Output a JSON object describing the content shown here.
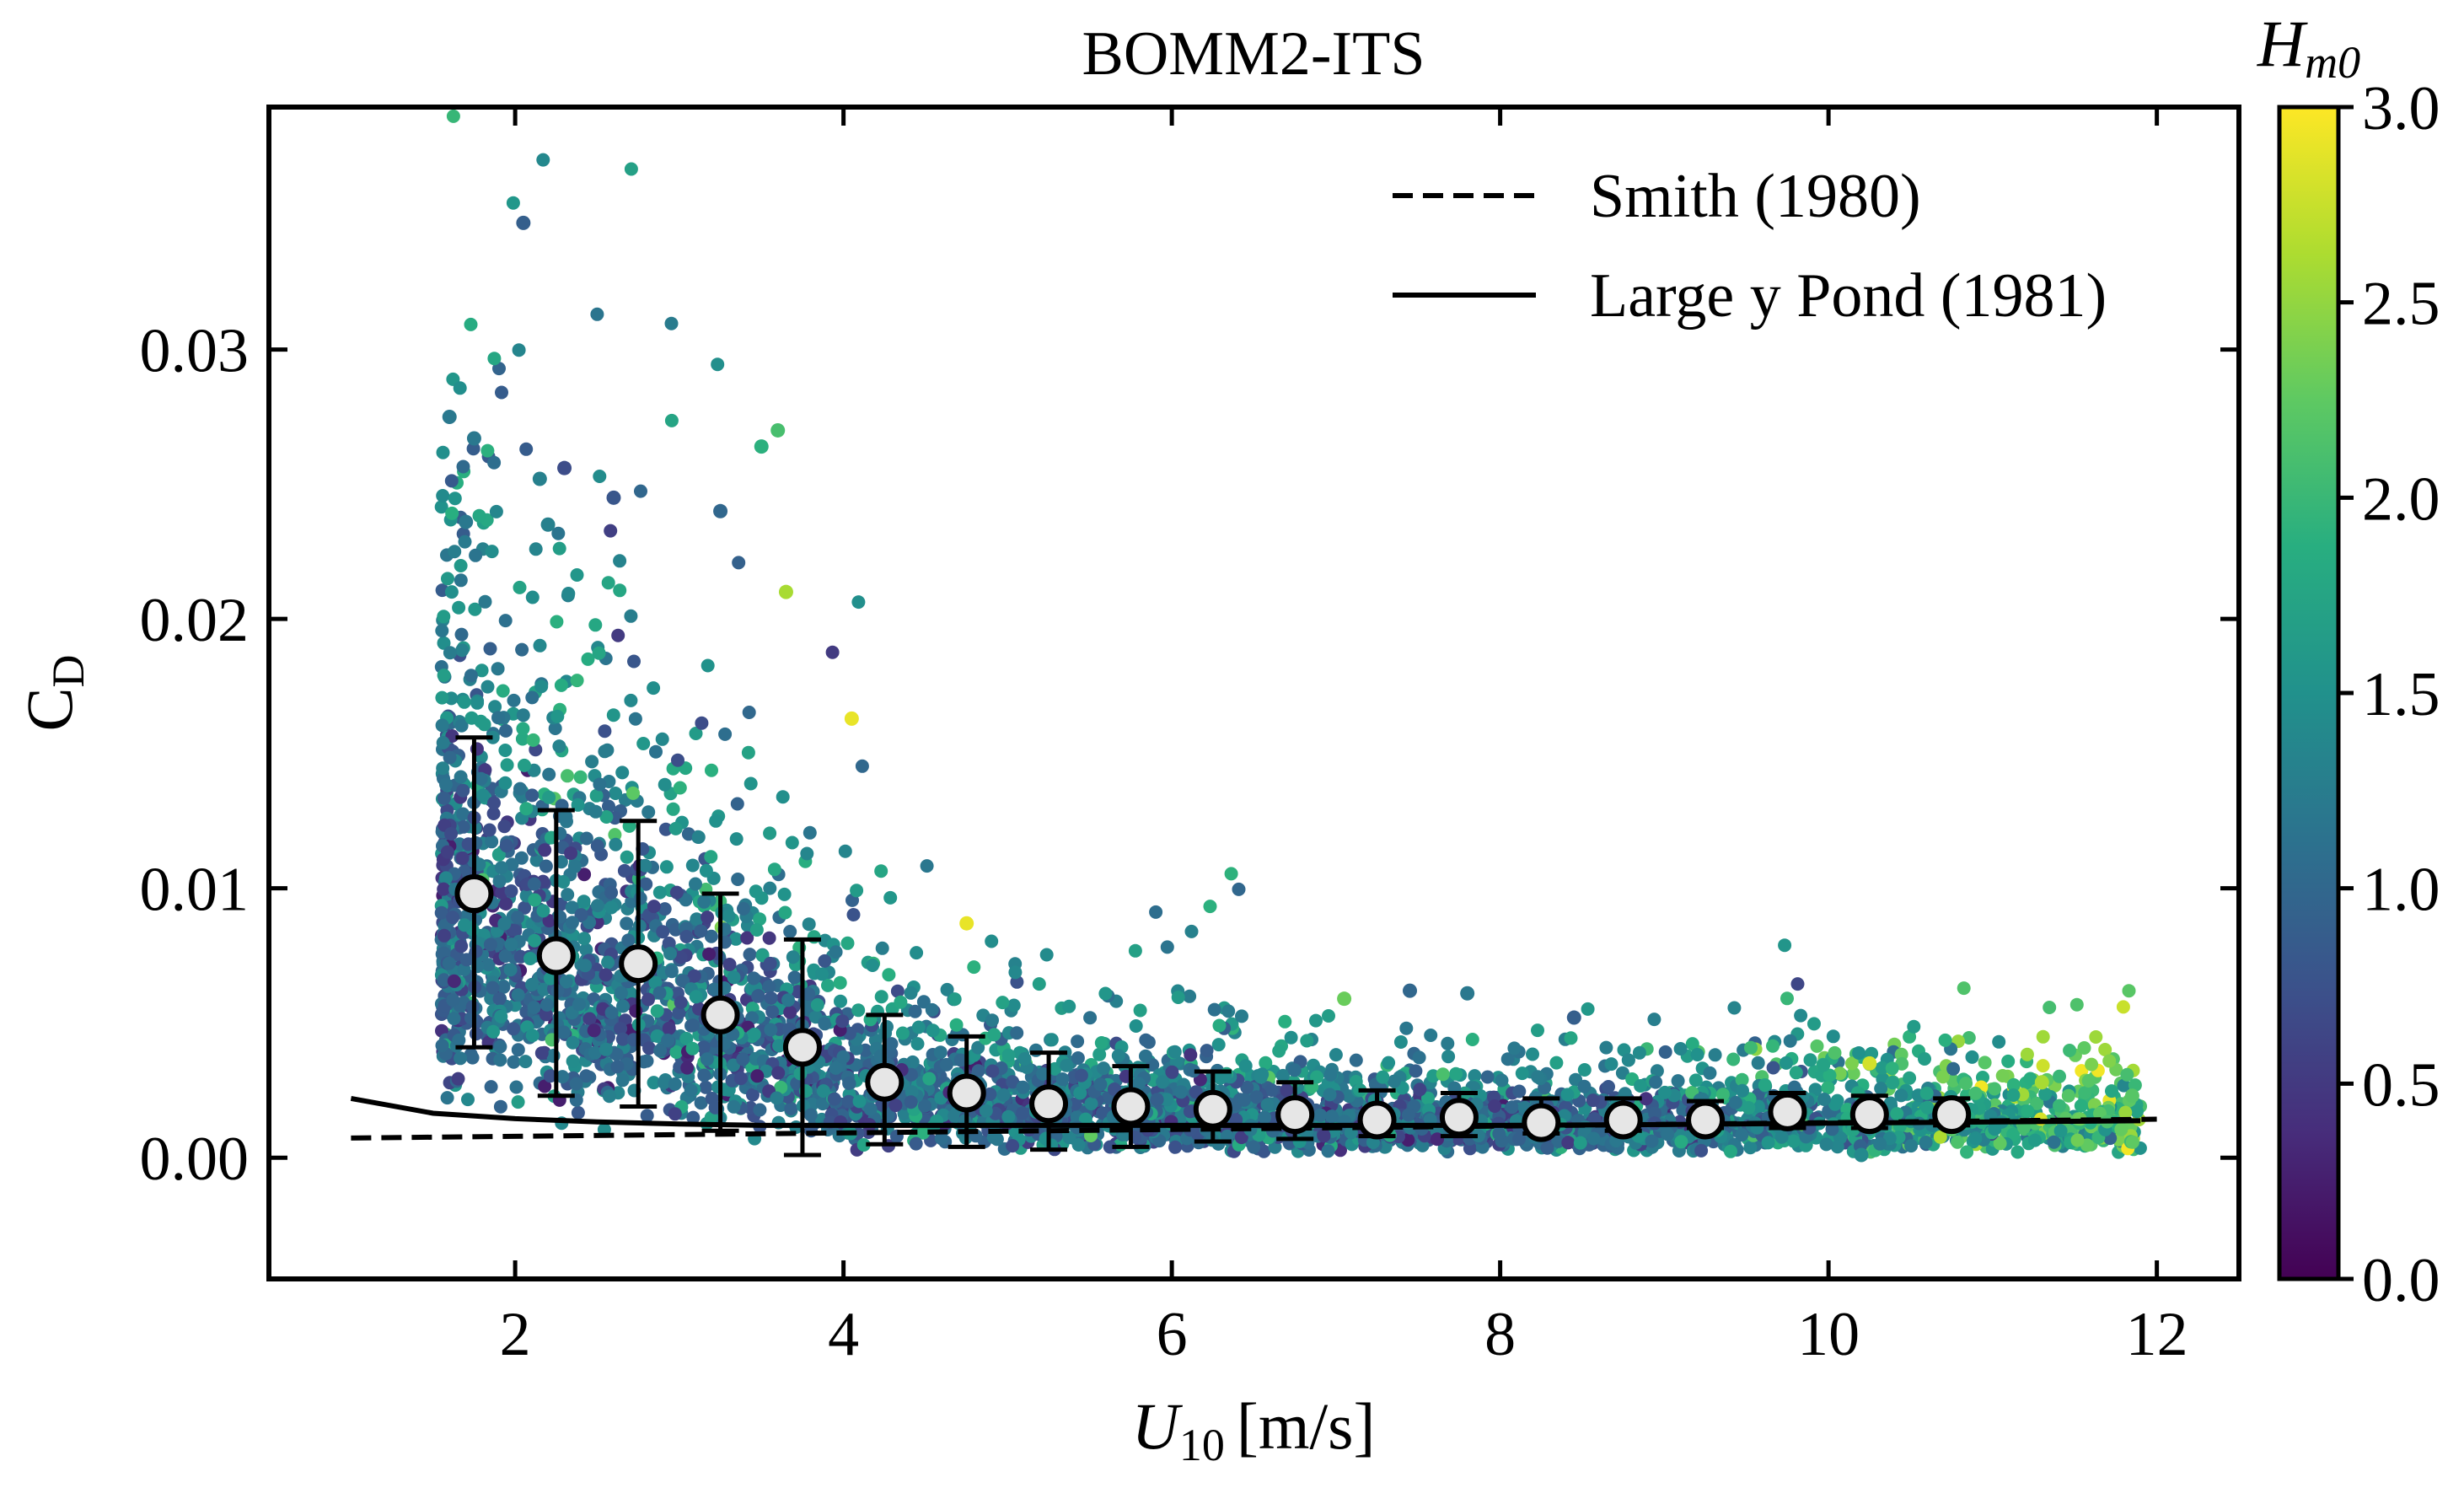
{
  "chart_data": {
    "type": "scatter",
    "title": "BOMM2-ITS",
    "xlabel": {
      "main": "U",
      "sub": "10",
      "unit": "[m/s]"
    },
    "ylabel": {
      "main": "C",
      "sub": "D"
    },
    "xlim": [
      0.5,
      12.5
    ],
    "ylim": [
      -0.0045,
      0.039
    ],
    "xticks": [
      2,
      4,
      6,
      8,
      10,
      12
    ],
    "xtick_labels": [
      "2",
      "4",
      "6",
      "8",
      "10",
      "12"
    ],
    "yticks": [
      0.0,
      0.01,
      0.02,
      0.03
    ],
    "ytick_labels": [
      "0.00",
      "0.01",
      "0.02",
      "0.03"
    ],
    "grid": false,
    "legend": {
      "position": "top-right",
      "entries": [
        {
          "label": "Smith (1980)",
          "style": "dashed"
        },
        {
          "label": "Large y Pond (1981)",
          "style": "solid"
        }
      ]
    },
    "colorbar": {
      "label": {
        "main": "H",
        "sub": "m0"
      },
      "range": [
        0.0,
        3.0
      ],
      "ticks": [
        0.0,
        0.5,
        1.0,
        1.5,
        2.0,
        2.5,
        3.0
      ],
      "tick_labels": [
        "0.0",
        "0.5",
        "1.0",
        "1.5",
        "2.0",
        "2.5",
        "3.0"
      ],
      "colormap": "viridis"
    },
    "series": [
      {
        "kind": "binned-mean",
        "x": [
          1.75,
          2.25,
          2.75,
          3.25,
          3.75,
          4.25,
          4.75,
          5.25,
          5.75,
          6.25,
          6.75,
          7.25,
          7.75,
          8.25,
          8.75,
          9.25,
          9.75,
          10.25,
          10.75
        ],
        "y": [
          0.0098,
          0.0075,
          0.0072,
          0.0053,
          0.0041,
          0.0028,
          0.0024,
          0.002,
          0.0019,
          0.0018,
          0.0016,
          0.0014,
          0.0015,
          0.0013,
          0.0014,
          0.0014,
          0.0017,
          0.0016,
          0.0016
        ],
        "err_low": [
          0.0041,
          0.0023,
          0.0019,
          0.001,
          0.0001,
          0.0005,
          0.0004,
          0.0003,
          0.0004,
          0.0006,
          0.0007,
          0.0008,
          0.0008,
          0.0009,
          0.001,
          0.0011,
          0.0011,
          0.0011,
          0.0012
        ],
        "err_high": [
          0.0156,
          0.0129,
          0.0125,
          0.0098,
          0.0081,
          0.0053,
          0.0045,
          0.0039,
          0.0034,
          0.0032,
          0.0028,
          0.0025,
          0.0024,
          0.0022,
          0.0022,
          0.0021,
          0.0024,
          0.0023,
          0.0022
        ]
      },
      {
        "kind": "line",
        "style": "dashed",
        "x": [
          1.0,
          12.0
        ],
        "y": [
          0.00073,
          0.00143
        ]
      },
      {
        "kind": "line",
        "style": "solid",
        "x": [
          1.0,
          1.5,
          2.0,
          2.5,
          3.0,
          3.5,
          4.0,
          5.0,
          6.0,
          7.0,
          8.0,
          9.0,
          10.0,
          11.0,
          11.9
        ],
        "y": [
          0.0022,
          0.00165,
          0.00145,
          0.00133,
          0.00125,
          0.0012,
          0.0012,
          0.0012,
          0.0012,
          0.0012,
          0.0012,
          0.00123,
          0.00128,
          0.00133,
          0.00137
        ]
      }
    ],
    "scatter_cloud_description": "thousands of points colored by H_m0",
    "scatter_outliers": [
      {
        "x": 2.05,
        "y": 0.0347,
        "c": 0.9
      },
      {
        "x": 1.6,
        "y": 0.0275,
        "c": 1.2
      },
      {
        "x": 1.75,
        "y": 0.0267,
        "c": 1.2
      },
      {
        "x": 2.3,
        "y": 0.0256,
        "c": 0.7
      },
      {
        "x": 2.15,
        "y": 0.0252,
        "c": 1.3
      },
      {
        "x": 3.6,
        "y": 0.027,
        "c": 2.1
      },
      {
        "x": 3.5,
        "y": 0.0264,
        "c": 1.9
      },
      {
        "x": 2.6,
        "y": 0.0245,
        "c": 0.8
      },
      {
        "x": 1.7,
        "y": 0.0236,
        "c": 1.2
      },
      {
        "x": 3.25,
        "y": 0.024,
        "c": 1.0
      },
      {
        "x": 2.2,
        "y": 0.0235,
        "c": 1.3
      },
      {
        "x": 3.65,
        "y": 0.021,
        "c": 2.6
      },
      {
        "x": 4.05,
        "y": 0.0163,
        "c": 2.9
      },
      {
        "x": 4.75,
        "y": 0.0087,
        "c": 2.9
      },
      {
        "x": 7.05,
        "y": 0.0059,
        "c": 2.3
      },
      {
        "x": 7.45,
        "y": 0.0062,
        "c": 1.0
      },
      {
        "x": 7.8,
        "y": 0.0061,
        "c": 1.2
      },
      {
        "x": 8.45,
        "y": 0.0052,
        "c": 0.9
      },
      {
        "x": 10.25,
        "y": 0.0035,
        "c": 2.8
      },
      {
        "x": 11.3,
        "y": 0.0028,
        "c": 2.6
      },
      {
        "x": 11.85,
        "y": 0.0023,
        "c": 2.2
      },
      {
        "x": 10.2,
        "y": 0.0001,
        "c": 1.4
      }
    ]
  }
}
